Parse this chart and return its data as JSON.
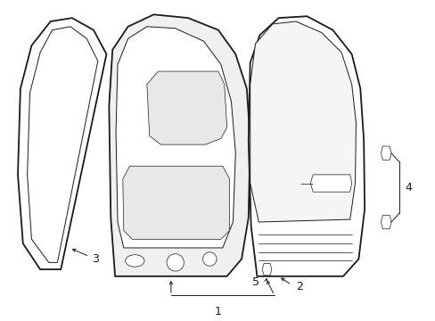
{
  "bg_color": "#ffffff",
  "line_color": "#1a1a1a",
  "lw_main": 1.3,
  "lw_thin": 0.7,
  "lw_inner": 0.5,
  "label_fontsize": 9,
  "fig_width": 4.89,
  "fig_height": 3.6
}
